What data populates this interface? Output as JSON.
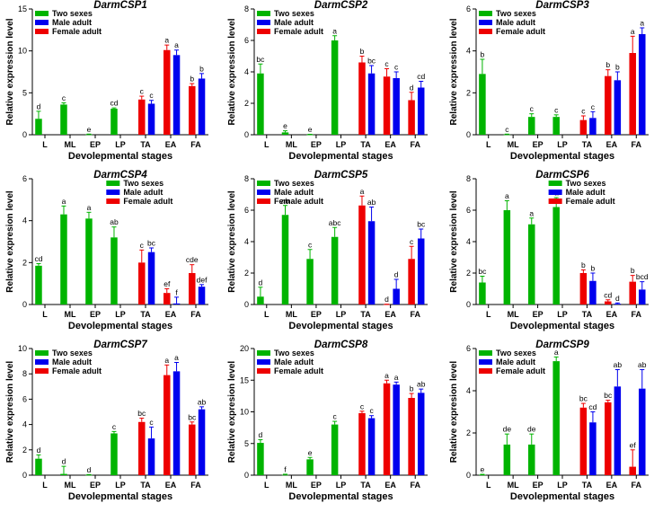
{
  "chart_data": [
    {
      "type": "bar",
      "title": "DarmCSP1",
      "xlabel": "Devolepmental stages",
      "ylabel": "Relative expression level",
      "categories": [
        "L",
        "ML",
        "EP",
        "LP",
        "TA",
        "EA",
        "FA"
      ],
      "ylim": [
        0,
        15
      ],
      "yticks": [
        0,
        5,
        10,
        15
      ],
      "legend_position": "top-left",
      "series": [
        {
          "name": "Two sexes",
          "color": "#00b400",
          "values": [
            1.9,
            3.6,
            0.03,
            3.1,
            null,
            null,
            null
          ],
          "errors": [
            0.9,
            0.2,
            0.05,
            0.1,
            null,
            null,
            null
          ],
          "labels": [
            "d",
            "c",
            "e",
            "cd",
            null,
            null,
            null
          ]
        },
        {
          "name": "Male adult",
          "color": "#0000ee",
          "values": [
            null,
            null,
            null,
            null,
            3.7,
            9.5,
            6.7
          ],
          "errors": [
            null,
            null,
            null,
            null,
            0.4,
            0.6,
            0.6
          ],
          "labels": [
            null,
            null,
            null,
            null,
            "c",
            "a",
            "b"
          ]
        },
        {
          "name": "Female adult",
          "color": "#ee0000",
          "values": [
            null,
            null,
            null,
            null,
            4.2,
            10.1,
            5.8
          ],
          "errors": [
            null,
            null,
            null,
            null,
            0.4,
            0.6,
            0.3
          ],
          "labels": [
            null,
            null,
            null,
            null,
            "c",
            "a",
            "b"
          ]
        }
      ]
    },
    {
      "type": "bar",
      "title": "DarmCSP2",
      "xlabel": "Devolepmental stages",
      "ylabel": "Relative expression level",
      "categories": [
        "L",
        "ML",
        "EP",
        "LP",
        "TA",
        "EA",
        "FA"
      ],
      "ylim": [
        0,
        8
      ],
      "yticks": [
        0,
        2,
        4,
        6,
        8
      ],
      "legend_position": "top-left",
      "series": [
        {
          "name": "Two sexes",
          "color": "#00b400",
          "values": [
            3.9,
            0.15,
            0.01,
            6.0,
            null,
            null,
            null
          ],
          "errors": [
            0.6,
            0.1,
            0.02,
            0.3,
            null,
            null,
            null
          ],
          "labels": [
            "bc",
            "e",
            "e",
            "a",
            null,
            null,
            null
          ]
        },
        {
          "name": "Male adult",
          "color": "#0000ee",
          "values": [
            null,
            null,
            null,
            null,
            3.9,
            3.6,
            3.0
          ],
          "errors": [
            null,
            null,
            null,
            null,
            0.5,
            0.4,
            0.4
          ],
          "labels": [
            null,
            null,
            null,
            null,
            "bc",
            "c",
            "cd"
          ]
        },
        {
          "name": "Female adult",
          "color": "#ee0000",
          "values": [
            null,
            null,
            null,
            null,
            4.6,
            3.7,
            2.2
          ],
          "errors": [
            null,
            null,
            null,
            null,
            0.4,
            0.5,
            0.5
          ],
          "labels": [
            null,
            null,
            null,
            null,
            "b",
            "c",
            "d"
          ]
        }
      ]
    },
    {
      "type": "bar",
      "title": "DarmCSP3",
      "xlabel": "Devolepmental stages",
      "ylabel": "Relative expression level",
      "categories": [
        "L",
        "ML",
        "EP",
        "LP",
        "TA",
        "EA",
        "FA"
      ],
      "ylim": [
        0,
        6
      ],
      "yticks": [
        0,
        2,
        4,
        6
      ],
      "legend_position": "top-left",
      "series": [
        {
          "name": "Two sexes",
          "color": "#00b400",
          "values": [
            2.9,
            0.01,
            0.85,
            0.85,
            null,
            null,
            null
          ],
          "errors": [
            0.7,
            0.02,
            0.15,
            0.1,
            null,
            null,
            null
          ],
          "labels": [
            "b",
            "c",
            "c",
            "c",
            null,
            null,
            null
          ]
        },
        {
          "name": "Male adult",
          "color": "#0000ee",
          "values": [
            null,
            null,
            null,
            null,
            0.8,
            2.6,
            4.8
          ],
          "errors": [
            null,
            null,
            null,
            null,
            0.3,
            0.4,
            0.3
          ],
          "labels": [
            null,
            null,
            null,
            null,
            "c",
            "b",
            "a"
          ]
        },
        {
          "name": "Female adult",
          "color": "#ee0000",
          "values": [
            null,
            null,
            null,
            null,
            0.7,
            2.8,
            3.9
          ],
          "errors": [
            null,
            null,
            null,
            null,
            0.2,
            0.3,
            0.8
          ],
          "labels": [
            null,
            null,
            null,
            null,
            "c",
            "b",
            "a"
          ]
        }
      ]
    },
    {
      "type": "bar",
      "title": "DarmCSP4",
      "xlabel": "Devolepmental stages",
      "ylabel": "Relative expresion level",
      "categories": [
        "L",
        "ML",
        "EP",
        "LP",
        "TA",
        "EA",
        "FA"
      ],
      "ylim": [
        0,
        6
      ],
      "yticks": [
        0,
        2,
        4,
        6
      ],
      "legend_position": "top-right",
      "series": [
        {
          "name": "Two sexes",
          "color": "#00b400",
          "values": [
            1.85,
            4.3,
            4.1,
            3.2,
            null,
            null,
            null
          ],
          "errors": [
            0.1,
            0.4,
            0.3,
            0.5,
            null,
            null,
            null
          ],
          "labels": [
            "cd",
            "a",
            "a",
            "ab",
            null,
            null,
            null
          ]
        },
        {
          "name": "Male adult",
          "color": "#0000ee",
          "values": [
            null,
            null,
            null,
            null,
            2.5,
            0.05,
            0.85
          ],
          "errors": [
            null,
            null,
            null,
            null,
            0.2,
            0.3,
            0.1
          ],
          "labels": [
            null,
            null,
            null,
            null,
            "bc",
            "f",
            "def"
          ]
        },
        {
          "name": "Female adult",
          "color": "#ee0000",
          "values": [
            null,
            null,
            null,
            null,
            2.0,
            0.55,
            1.5
          ],
          "errors": [
            null,
            null,
            null,
            null,
            0.6,
            0.2,
            0.4
          ],
          "labels": [
            null,
            null,
            null,
            null,
            "c",
            "ef",
            "cde"
          ]
        }
      ]
    },
    {
      "type": "bar",
      "title": "DarmCSP5",
      "xlabel": "Devolepmental stages",
      "ylabel": "Relative expresion level",
      "categories": [
        "L",
        "ML",
        "EP",
        "LP",
        "TA",
        "EA",
        "FA"
      ],
      "ylim": [
        0,
        8
      ],
      "yticks": [
        0,
        2,
        4,
        6,
        8
      ],
      "legend_position": "top-left",
      "series": [
        {
          "name": "Two sexes",
          "color": "#00b400",
          "values": [
            0.5,
            5.7,
            2.9,
            4.3,
            null,
            null,
            null
          ],
          "errors": [
            0.6,
            0.6,
            0.6,
            0.6,
            null,
            null,
            null
          ],
          "labels": [
            "d",
            "ab",
            "c",
            "abc",
            null,
            null,
            null
          ]
        },
        {
          "name": "Male adult",
          "color": "#0000ee",
          "values": [
            null,
            null,
            null,
            null,
            5.3,
            1.0,
            4.2
          ],
          "errors": [
            null,
            null,
            null,
            null,
            0.9,
            0.6,
            0.6
          ],
          "labels": [
            null,
            null,
            null,
            null,
            "ab",
            "d",
            "bc"
          ]
        },
        {
          "name": "Female adult",
          "color": "#ee0000",
          "values": [
            null,
            null,
            null,
            null,
            6.3,
            0.01,
            2.9
          ],
          "errors": [
            null,
            null,
            null,
            null,
            0.6,
            0.01,
            0.8
          ],
          "labels": [
            null,
            null,
            null,
            null,
            "a",
            "d",
            "c"
          ]
        }
      ]
    },
    {
      "type": "bar",
      "title": "DarmCSP6",
      "xlabel": "Devolepmental stages",
      "ylabel": "Relative expresion level",
      "categories": [
        "L",
        "ML",
        "EP",
        "LP",
        "TA",
        "EA",
        "FA"
      ],
      "ylim": [
        0,
        8
      ],
      "yticks": [
        0,
        2,
        4,
        6,
        8
      ],
      "legend_position": "top-right",
      "series": [
        {
          "name": "Two sexes",
          "color": "#00b400",
          "values": [
            1.4,
            6.0,
            5.1,
            6.2,
            null,
            null,
            null
          ],
          "errors": [
            0.4,
            0.6,
            0.4,
            0.6,
            null,
            null,
            null
          ],
          "labels": [
            "bc",
            "a",
            "a",
            "a",
            null,
            null,
            null
          ]
        },
        {
          "name": "Male adult",
          "color": "#0000ee",
          "values": [
            null,
            null,
            null,
            null,
            1.5,
            0.05,
            0.95
          ],
          "errors": [
            null,
            null,
            null,
            null,
            0.5,
            0.05,
            0.5
          ],
          "labels": [
            null,
            null,
            null,
            null,
            "b",
            "d",
            "bcd"
          ]
        },
        {
          "name": "Female adult",
          "color": "#ee0000",
          "values": [
            null,
            null,
            null,
            null,
            2.0,
            0.2,
            1.45
          ],
          "errors": [
            null,
            null,
            null,
            null,
            0.2,
            0.1,
            0.4
          ],
          "labels": [
            null,
            null,
            null,
            null,
            "b",
            "cd",
            "b"
          ]
        }
      ]
    },
    {
      "type": "bar",
      "title": "DarmCSP7",
      "xlabel": "Devolepmental stages",
      "ylabel": "Relative expresion level",
      "categories": [
        "L",
        "ML",
        "EP",
        "LP",
        "TA",
        "EA",
        "FA"
      ],
      "ylim": [
        0,
        10
      ],
      "yticks": [
        0,
        2,
        4,
        6,
        8,
        10
      ],
      "legend_position": "top-left",
      "series": [
        {
          "name": "Two sexes",
          "color": "#00b400",
          "values": [
            1.3,
            0.1,
            0.02,
            3.3,
            null,
            null,
            null
          ],
          "errors": [
            0.3,
            0.6,
            0.03,
            0.15,
            null,
            null,
            null
          ],
          "labels": [
            "d",
            "d",
            "d",
            "c",
            null,
            null,
            null
          ]
        },
        {
          "name": "Male adult",
          "color": "#0000ee",
          "values": [
            null,
            null,
            null,
            null,
            2.9,
            8.2,
            5.2
          ],
          "errors": [
            null,
            null,
            null,
            null,
            0.9,
            0.7,
            0.2
          ],
          "labels": [
            null,
            null,
            null,
            null,
            "c",
            "a",
            "ab"
          ]
        },
        {
          "name": "Female adult",
          "color": "#ee0000",
          "values": [
            null,
            null,
            null,
            null,
            4.2,
            7.9,
            4.0
          ],
          "errors": [
            null,
            null,
            null,
            null,
            0.3,
            0.8,
            0.2
          ],
          "labels": [
            null,
            null,
            null,
            null,
            "bc",
            "a",
            "bc"
          ]
        }
      ]
    },
    {
      "type": "bar",
      "title": "DarmCSP8",
      "xlabel": "Devolepmental stages",
      "ylabel": "Relative expresion level",
      "categories": [
        "L",
        "ML",
        "EP",
        "LP",
        "TA",
        "EA",
        "FA"
      ],
      "ylim": [
        0,
        20
      ],
      "yticks": [
        0,
        5,
        10,
        15,
        20
      ],
      "legend_position": "top-left",
      "series": [
        {
          "name": "Two sexes",
          "color": "#00b400",
          "values": [
            5.1,
            0.05,
            2.5,
            8.0,
            null,
            null,
            null
          ],
          "errors": [
            0.5,
            0.1,
            0.3,
            0.5,
            null,
            null,
            null
          ],
          "labels": [
            "d",
            "f",
            "e",
            "c",
            null,
            null,
            null
          ]
        },
        {
          "name": "Male adult",
          "color": "#0000ee",
          "values": [
            null,
            null,
            null,
            null,
            9.0,
            14.3,
            13.0
          ],
          "errors": [
            null,
            null,
            null,
            null,
            0.4,
            0.4,
            0.6
          ],
          "labels": [
            null,
            null,
            null,
            null,
            "c",
            "a",
            "ab"
          ]
        },
        {
          "name": "Female adult",
          "color": "#ee0000",
          "values": [
            null,
            null,
            null,
            null,
            9.8,
            14.5,
            12.2
          ],
          "errors": [
            null,
            null,
            null,
            null,
            0.3,
            0.5,
            0.7
          ],
          "labels": [
            null,
            null,
            null,
            null,
            "c",
            "a",
            "b"
          ]
        }
      ]
    },
    {
      "type": "bar",
      "title": "DarmCSP9",
      "xlabel": "Devolepmental stages",
      "ylabel": "Relative expresion level",
      "categories": [
        "L",
        "ML",
        "EP",
        "LP",
        "TA",
        "EA",
        "FA"
      ],
      "ylim": [
        0,
        6
      ],
      "yticks": [
        0,
        2,
        4,
        6
      ],
      "legend_position": "top-left",
      "series": [
        {
          "name": "Two sexes",
          "color": "#00b400",
          "values": [
            0.02,
            1.45,
            1.45,
            5.4,
            null,
            null,
            null
          ],
          "errors": [
            0.02,
            0.5,
            0.5,
            0.2,
            null,
            null,
            null
          ],
          "labels": [
            "e",
            "de",
            "de",
            "a",
            null,
            null,
            null
          ]
        },
        {
          "name": "Male adult",
          "color": "#0000ee",
          "values": [
            null,
            null,
            null,
            null,
            2.5,
            4.2,
            4.1
          ],
          "errors": [
            null,
            null,
            null,
            null,
            0.5,
            0.8,
            0.9
          ],
          "labels": [
            null,
            null,
            null,
            null,
            "cd",
            "ab",
            "ab"
          ]
        },
        {
          "name": "Female adult",
          "color": "#ee0000",
          "values": [
            null,
            null,
            null,
            null,
            3.2,
            3.45,
            0.4
          ],
          "errors": [
            null,
            null,
            null,
            null,
            0.2,
            0.1,
            0.8
          ],
          "labels": [
            null,
            null,
            null,
            null,
            "bc",
            "bc",
            "ef"
          ]
        }
      ]
    }
  ]
}
